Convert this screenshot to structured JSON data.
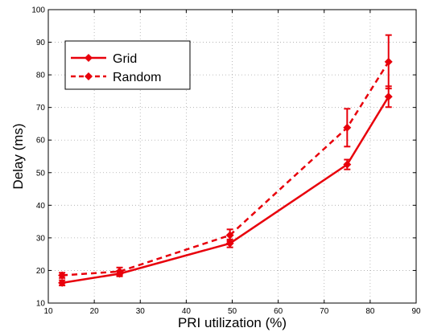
{
  "chart_data": {
    "type": "line",
    "xlabel": "PRI utilization (%)",
    "ylabel": "Delay (ms)",
    "xlim": [
      10,
      90
    ],
    "ylim": [
      10,
      100
    ],
    "xticks": [
      10,
      20,
      30,
      40,
      50,
      60,
      70,
      80,
      90
    ],
    "yticks": [
      10,
      20,
      30,
      40,
      50,
      60,
      70,
      80,
      90,
      100
    ],
    "grid": true,
    "legend_position": "top-left",
    "series": [
      {
        "name": "Grid",
        "style": "solid",
        "color": "#e8000b",
        "x": [
          13,
          25.5,
          49.5,
          75,
          84
        ],
        "y": [
          16.2,
          19.0,
          28.3,
          52.5,
          73.3
        ],
        "err": [
          0.8,
          0.8,
          1.2,
          1.5,
          3.2
        ]
      },
      {
        "name": "Random",
        "style": "dashed",
        "color": "#e8000b",
        "x": [
          13,
          25.5,
          49.5,
          75,
          84
        ],
        "y": [
          18.5,
          19.7,
          30.8,
          63.8,
          84.0
        ],
        "err": [
          0.8,
          1.2,
          1.8,
          5.8,
          8.2
        ]
      }
    ]
  }
}
